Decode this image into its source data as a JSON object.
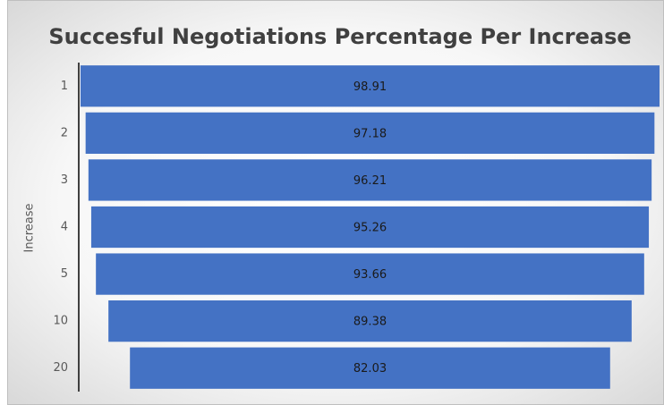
{
  "chart_data": {
    "type": "funnel",
    "title": "Succesful Negotiations Percentage Per Increase",
    "y_label": "Increase",
    "categories": [
      "1",
      "2",
      "3",
      "4",
      "5",
      "10",
      "20"
    ],
    "values": [
      98.91,
      97.18,
      96.21,
      95.26,
      93.66,
      89.38,
      82.03
    ],
    "color": "#4472c4"
  }
}
